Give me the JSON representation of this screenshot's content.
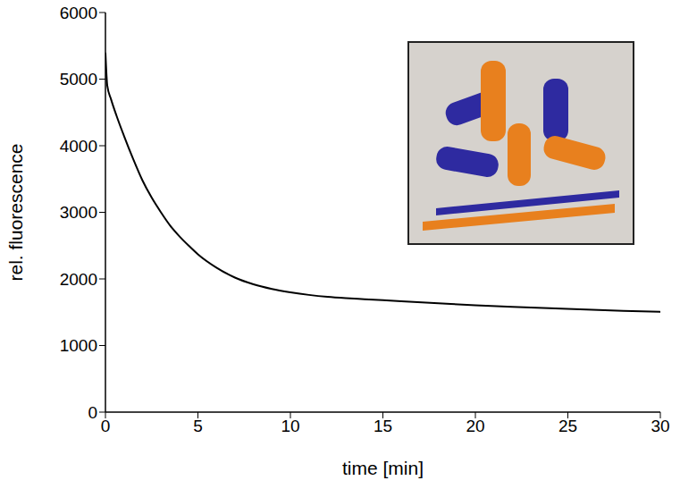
{
  "chart_data": {
    "type": "line",
    "x_label": "time [min]",
    "y_label": "rel. fluorescence",
    "x": [
      0,
      0.1,
      0.3,
      0.6,
      1,
      1.5,
      2,
      2.5,
      3,
      3.5,
      4,
      4.5,
      5,
      6,
      7,
      8,
      9,
      10,
      11,
      12,
      13,
      14,
      15,
      16,
      18,
      20,
      22,
      24,
      26,
      28,
      30
    ],
    "values": [
      5400,
      4900,
      4700,
      4450,
      4150,
      3800,
      3480,
      3220,
      3000,
      2800,
      2640,
      2500,
      2370,
      2170,
      2020,
      1920,
      1850,
      1800,
      1760,
      1730,
      1710,
      1695,
      1680,
      1665,
      1635,
      1605,
      1580,
      1560,
      1540,
      1520,
      1505
    ],
    "color": "#000000",
    "marker": "none",
    "xlim": [
      0,
      30
    ],
    "ylim": [
      0,
      6000
    ],
    "xticks": [
      0,
      5,
      10,
      15,
      20,
      25,
      30
    ],
    "yticks": [
      0,
      1000,
      2000,
      3000,
      4000,
      5000,
      6000
    ],
    "grid": false
  }
}
